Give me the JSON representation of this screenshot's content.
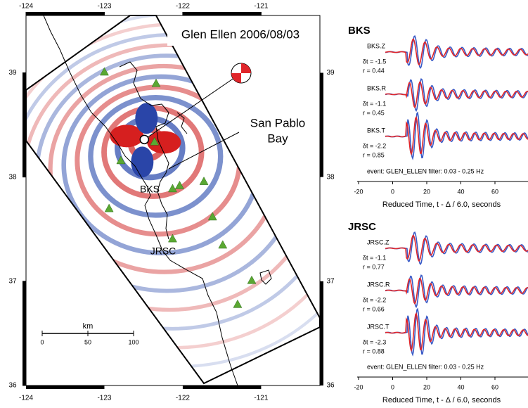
{
  "chart_data": [
    {
      "type": "scatter",
      "title": "Glen Ellen 2006/08/03",
      "xlim": [
        -124,
        -120.25
      ],
      "ylim": [
        36,
        39.55
      ],
      "xticks": [
        -124,
        -123,
        -122,
        -121
      ],
      "yticks": [
        36,
        37,
        38,
        39
      ],
      "x": [
        -123.0,
        -122.34,
        -122.36,
        -122.79,
        -122.13,
        -122.04,
        -121.73,
        -122.94,
        -121.62,
        -122.13,
        -121.49,
        -121.12,
        -121.3
      ],
      "y": [
        39.01,
        38.9,
        38.34,
        38.16,
        37.89,
        37.92,
        37.96,
        37.7,
        37.62,
        37.41,
        37.35,
        37.01,
        36.78
      ],
      "color": "#5aa832",
      "epicenter": [
        -122.49,
        38.36
      ],
      "annotations": [
        "BKS",
        "JRSC",
        "San Pablo",
        "Bay"
      ],
      "scale": {
        "label": "km",
        "ticks": [
          0,
          50,
          100
        ]
      }
    },
    {
      "type": "waveform",
      "title": "BKS",
      "xlim": [
        -20,
        80
      ],
      "xticks": [
        -20,
        0,
        20,
        40,
        60
      ],
      "xlabel": "Reduced Time, t - Δ / 6.0, seconds",
      "traces": [
        {
          "name": "BKS.Z",
          "dt": "δt = -1.5",
          "r": "r = 0.44"
        },
        {
          "name": "BKS.R",
          "dt": "δt = -1.1",
          "r": "r = 0.45"
        },
        {
          "name": "BKS.T",
          "dt": "δt = -2.2",
          "r": "r = 0.85"
        }
      ],
      "note": "event: GLEN_ELLEN filter: 0.03 - 0.25 Hz",
      "colors": [
        "#3a5bc7",
        "#e0262b"
      ]
    },
    {
      "type": "waveform",
      "title": "JRSC",
      "xlim": [
        -20,
        80
      ],
      "xticks": [
        -20,
        0,
        20,
        40,
        60
      ],
      "xlabel": "Reduced Time, t - Δ / 6.0, seconds",
      "traces": [
        {
          "name": "JRSC.Z",
          "dt": "δt = -1.1",
          "r": "r = 0.77"
        },
        {
          "name": "JRSC.R",
          "dt": "δt = -2.2",
          "r": "r = 0.66"
        },
        {
          "name": "JRSC.T",
          "dt": "δt = -2.3",
          "r": "r = 0.88"
        }
      ],
      "note": "event: GLEN_ELLEN filter: 0.03 - 0.25 Hz",
      "colors": [
        "#3a5bc7",
        "#e0262b"
      ]
    }
  ]
}
